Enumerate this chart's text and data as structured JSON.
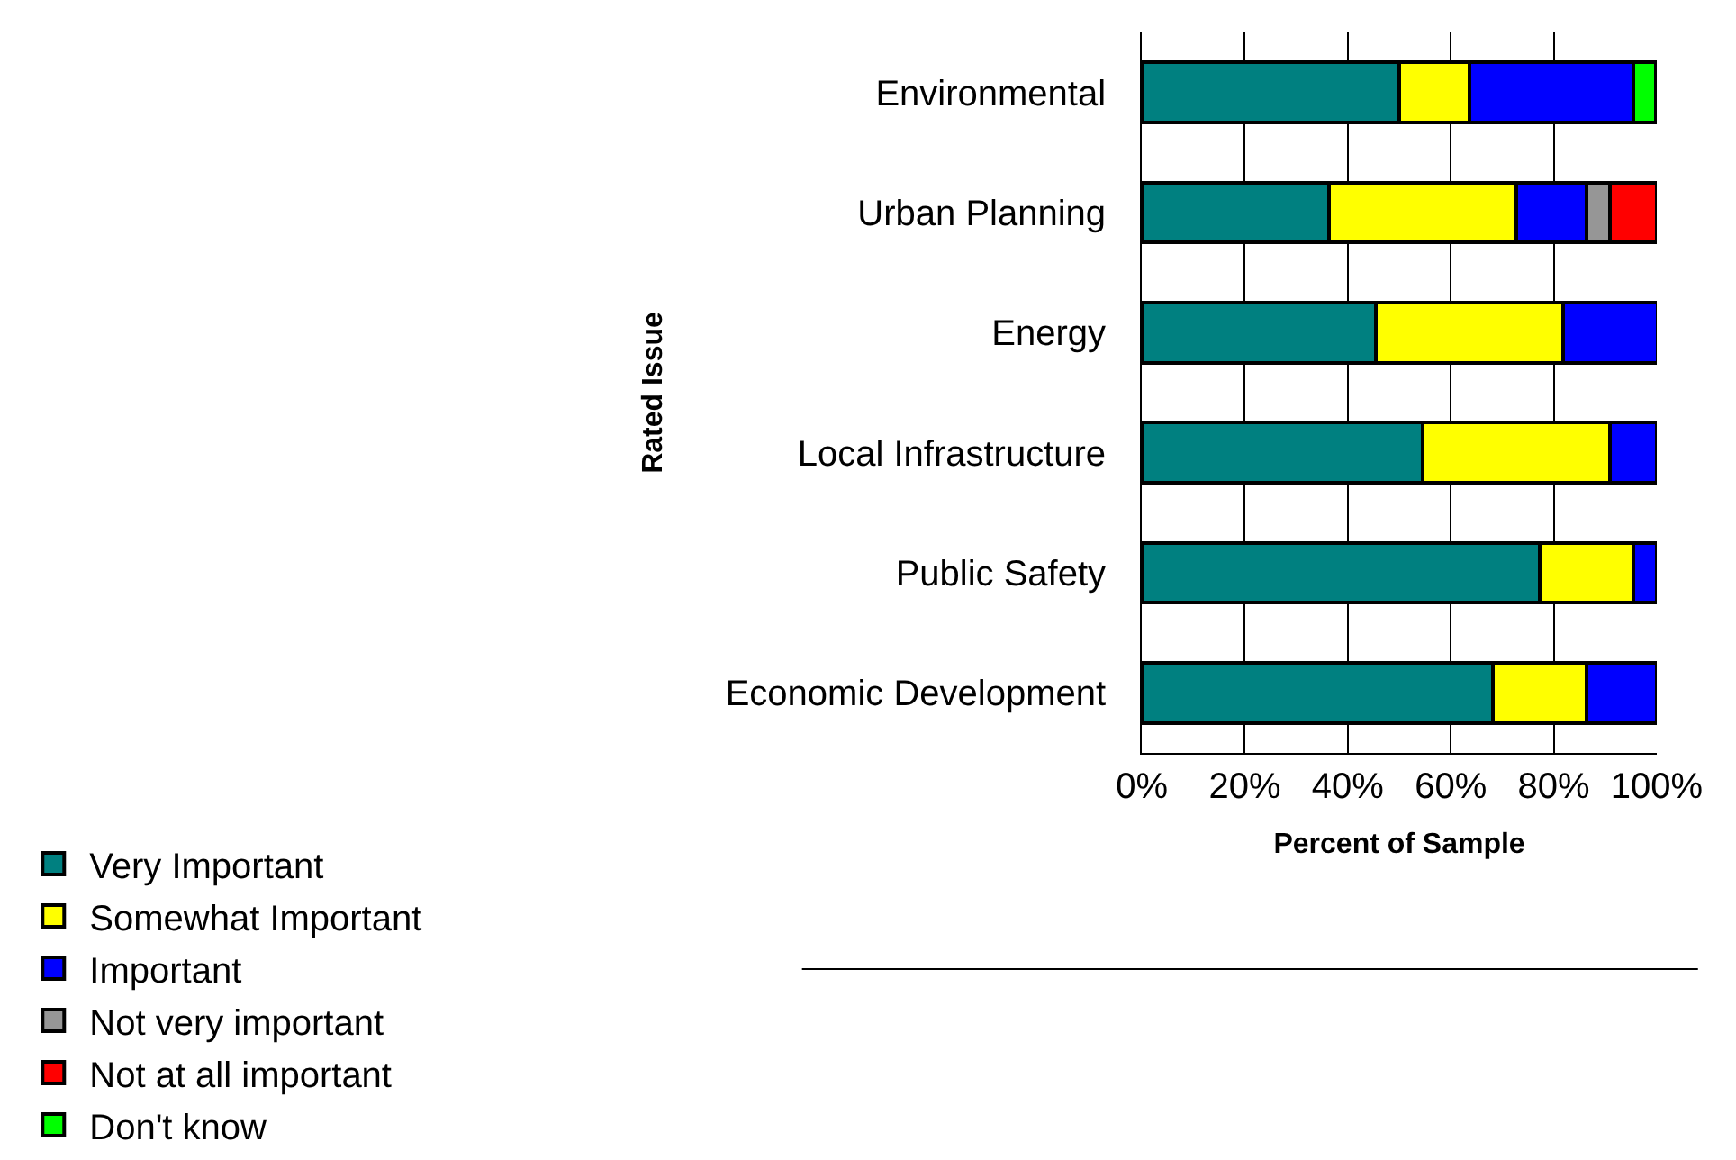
{
  "chart_data": {
    "type": "bar",
    "orientation": "horizontal",
    "stacked": true,
    "xlabel": "Percent of Sample",
    "ylabel": "Rated Issue",
    "categories": [
      "Environmental",
      "Urban Planning",
      "Energy",
      "Local Infrastructure",
      "Public Safety",
      "Economic Development"
    ],
    "series": [
      {
        "name": "Very Important",
        "color": "#008080",
        "values": [
          50.0,
          36.4,
          45.5,
          54.5,
          77.3,
          68.2
        ]
      },
      {
        "name": "Somewhat Important",
        "color": "#ffff00",
        "values": [
          13.6,
          36.4,
          36.4,
          36.4,
          18.2,
          18.2
        ]
      },
      {
        "name": "Important",
        "color": "#0000ff",
        "values": [
          31.8,
          13.6,
          18.2,
          9.1,
          4.5,
          13.6
        ]
      },
      {
        "name": "Not very important",
        "color": "#969696",
        "values": [
          null,
          4.5,
          null,
          null,
          null,
          null
        ]
      },
      {
        "name": "Not at all important",
        "color": "#ff0000",
        "values": [
          null,
          9.1,
          null,
          null,
          null,
          null
        ]
      },
      {
        "name": "Don't know",
        "color": "#00ff00",
        "values": [
          4.5,
          null,
          null,
          null,
          null,
          null
        ]
      }
    ],
    "xlim": [
      0,
      100
    ],
    "xticks": [
      {
        "value": 0,
        "label": "0%"
      },
      {
        "value": 20,
        "label": "20%"
      },
      {
        "value": 40,
        "label": "40%"
      },
      {
        "value": 60,
        "label": "60%"
      },
      {
        "value": 80,
        "label": "80%"
      },
      {
        "value": 100,
        "label": "100%"
      }
    ],
    "grid": "x",
    "legend": "bottom"
  }
}
